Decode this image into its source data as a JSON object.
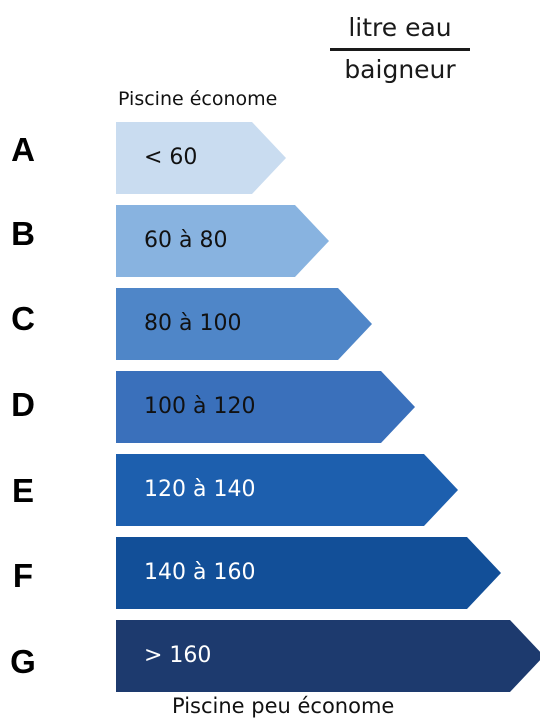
{
  "unit": {
    "numerator": "litre eau",
    "denominator": "baigneur"
  },
  "top_caption": "Piscine économe",
  "bottom_caption": "Piscine peu économe",
  "classes": [
    {
      "letter": "A",
      "range": "< 60",
      "color": "#c9dcf0",
      "text_color": "#111111"
    },
    {
      "letter": "B",
      "range": "60 à 80",
      "color": "#88b3e0",
      "text_color": "#111111"
    },
    {
      "letter": "C",
      "range": "80 à 100",
      "color": "#4f86c8",
      "text_color": "#111111"
    },
    {
      "letter": "D",
      "range": "100 à 120",
      "color": "#3a70bb",
      "text_color": "#111111"
    },
    {
      "letter": "E",
      "range": "120 à 140",
      "color": "#1d5fae",
      "text_color": "#ffffff"
    },
    {
      "letter": "F",
      "range": "140 à 160",
      "color": "#124f98",
      "text_color": "#ffffff"
    },
    {
      "letter": "G",
      "range": "> 160",
      "color": "#1d3a6e",
      "text_color": "#ffffff"
    }
  ]
}
